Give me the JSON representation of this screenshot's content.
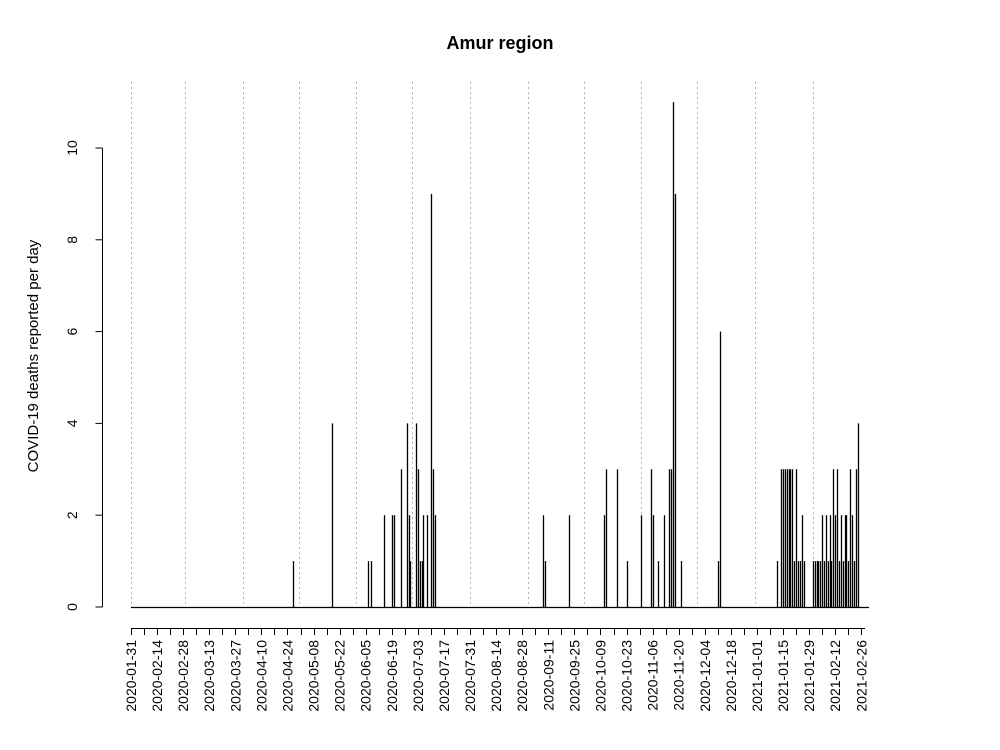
{
  "chart_data": {
    "type": "bar",
    "title": "Amur region",
    "xlabel": "",
    "ylabel": "COVID-19 deaths reported per day",
    "x_range": [
      "2020-01-31",
      "2021-02-28"
    ],
    "ylim": [
      0,
      11
    ],
    "y_ticks": [
      0,
      2,
      4,
      6,
      8,
      10
    ],
    "x_tick_labels": [
      "2020-01-31",
      "2020-02-14",
      "2020-02-28",
      "2020-03-13",
      "2020-03-27",
      "2020-04-10",
      "2020-04-24",
      "2020-05-08",
      "2020-05-22",
      "2020-06-05",
      "2020-06-19",
      "2020-07-03",
      "2020-07-17",
      "2020-07-31",
      "2020-08-14",
      "2020-08-28",
      "2020-09-11",
      "2020-09-25",
      "2020-10-09",
      "2020-10-23",
      "2020-11-06",
      "2020-11-20",
      "2020-12-04",
      "2020-12-18",
      "2021-01-01",
      "2021-01-15",
      "2021-01-29",
      "2021-02-12",
      "2021-02-26"
    ],
    "vertical_gridlines_at": [
      "2020-01-31",
      "2020-02-29",
      "2020-03-31",
      "2020-04-30",
      "2020-05-31",
      "2020-06-30",
      "2020-07-31",
      "2020-08-31",
      "2020-09-30",
      "2020-10-31",
      "2020-11-30",
      "2020-12-31",
      "2021-01-31"
    ],
    "grid": "vertical dotted (month boundaries)",
    "series": [
      {
        "color": "#000000",
        "points": [
          {
            "x": "2020-04-27",
            "y": 1
          },
          {
            "x": "2020-05-18",
            "y": 4
          },
          {
            "x": "2020-06-06",
            "y": 1
          },
          {
            "x": "2020-06-08",
            "y": 1
          },
          {
            "x": "2020-06-15",
            "y": 2
          },
          {
            "x": "2020-06-19",
            "y": 2
          },
          {
            "x": "2020-06-20",
            "y": 2
          },
          {
            "x": "2020-06-24",
            "y": 3
          },
          {
            "x": "2020-06-27",
            "y": 4
          },
          {
            "x": "2020-06-28",
            "y": 2
          },
          {
            "x": "2020-06-29",
            "y": 1
          },
          {
            "x": "2020-07-02",
            "y": 4
          },
          {
            "x": "2020-07-03",
            "y": 3
          },
          {
            "x": "2020-07-04",
            "y": 1
          },
          {
            "x": "2020-07-05",
            "y": 1
          },
          {
            "x": "2020-07-06",
            "y": 2
          },
          {
            "x": "2020-07-08",
            "y": 2
          },
          {
            "x": "2020-07-10",
            "y": 9
          },
          {
            "x": "2020-07-11",
            "y": 3
          },
          {
            "x": "2020-07-12",
            "y": 2
          },
          {
            "x": "2020-09-08",
            "y": 2
          },
          {
            "x": "2020-09-09",
            "y": 1
          },
          {
            "x": "2020-09-22",
            "y": 2
          },
          {
            "x": "2020-10-11",
            "y": 2
          },
          {
            "x": "2020-10-12",
            "y": 3
          },
          {
            "x": "2020-10-18",
            "y": 3
          },
          {
            "x": "2020-10-23",
            "y": 1
          },
          {
            "x": "2020-10-31",
            "y": 2
          },
          {
            "x": "2020-11-05",
            "y": 3
          },
          {
            "x": "2020-11-06",
            "y": 2
          },
          {
            "x": "2020-11-09",
            "y": 1
          },
          {
            "x": "2020-11-12",
            "y": 2
          },
          {
            "x": "2020-11-15",
            "y": 3
          },
          {
            "x": "2020-11-16",
            "y": 3
          },
          {
            "x": "2020-11-17",
            "y": 11
          },
          {
            "x": "2020-11-18",
            "y": 9
          },
          {
            "x": "2020-11-21",
            "y": 1
          },
          {
            "x": "2020-12-11",
            "y": 1
          },
          {
            "x": "2020-12-12",
            "y": 6
          },
          {
            "x": "2021-01-12",
            "y": 1
          },
          {
            "x": "2021-01-14",
            "y": 3
          },
          {
            "x": "2021-01-15",
            "y": 3
          },
          {
            "x": "2021-01-16",
            "y": 3
          },
          {
            "x": "2021-01-17",
            "y": 3
          },
          {
            "x": "2021-01-18",
            "y": 3
          },
          {
            "x": "2021-01-19",
            "y": 3
          },
          {
            "x": "2021-01-20",
            "y": 3
          },
          {
            "x": "2021-01-21",
            "y": 1
          },
          {
            "x": "2021-01-22",
            "y": 3
          },
          {
            "x": "2021-01-23",
            "y": 1
          },
          {
            "x": "2021-01-24",
            "y": 1
          },
          {
            "x": "2021-01-25",
            "y": 2
          },
          {
            "x": "2021-01-26",
            "y": 1
          },
          {
            "x": "2021-01-31",
            "y": 1
          },
          {
            "x": "2021-02-01",
            "y": 1
          },
          {
            "x": "2021-02-02",
            "y": 1
          },
          {
            "x": "2021-02-03",
            "y": 1
          },
          {
            "x": "2021-02-04",
            "y": 1
          },
          {
            "x": "2021-02-05",
            "y": 2
          },
          {
            "x": "2021-02-06",
            "y": 1
          },
          {
            "x": "2021-02-07",
            "y": 2
          },
          {
            "x": "2021-02-08",
            "y": 1
          },
          {
            "x": "2021-02-09",
            "y": 2
          },
          {
            "x": "2021-02-10",
            "y": 1
          },
          {
            "x": "2021-02-11",
            "y": 3
          },
          {
            "x": "2021-02-12",
            "y": 2
          },
          {
            "x": "2021-02-13",
            "y": 3
          },
          {
            "x": "2021-02-14",
            "y": 1
          },
          {
            "x": "2021-02-15",
            "y": 2
          },
          {
            "x": "2021-02-16",
            "y": 1
          },
          {
            "x": "2021-02-17",
            "y": 2
          },
          {
            "x": "2021-02-18",
            "y": 2
          },
          {
            "x": "2021-02-19",
            "y": 1
          },
          {
            "x": "2021-02-20",
            "y": 3
          },
          {
            "x": "2021-02-21",
            "y": 2
          },
          {
            "x": "2021-02-22",
            "y": 1
          },
          {
            "x": "2021-02-23",
            "y": 3
          },
          {
            "x": "2021-02-24",
            "y": 4
          }
        ]
      }
    ]
  }
}
